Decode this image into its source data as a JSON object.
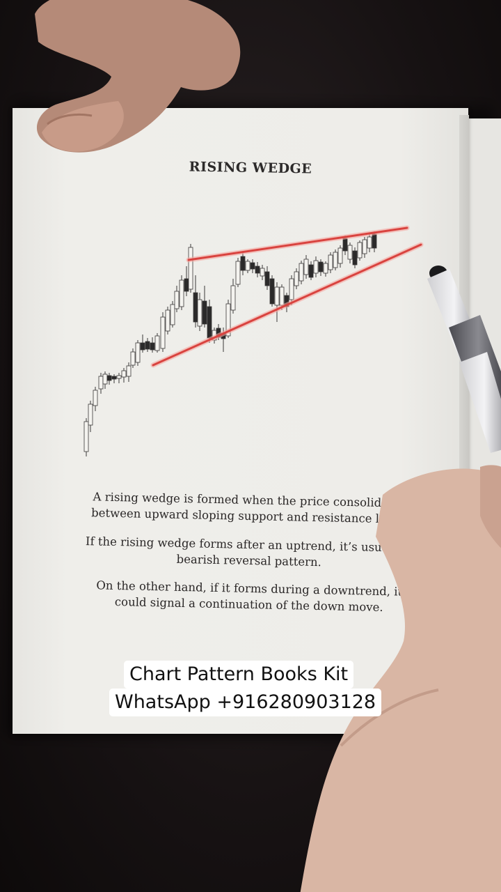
{
  "book": {
    "title": "RISING WEDGE",
    "paragraphs": [
      "A rising wedge is formed when the price consolidates between upward sloping support and resistance lines.",
      "If the rising wedge forms after an uptrend, it’s usually a bearish reversal pattern.",
      "On the other hand, if it forms during a downtrend, it could signal a continuation of the down move."
    ]
  },
  "caption": {
    "line1": "Chart Pattern Books Kit",
    "line2": "WhatsApp +916280903128"
  },
  "colors": {
    "trendline": "#d9433f",
    "trendline_glow": "#f2a09a",
    "candle_up": "#f4f3ef",
    "candle_down": "#2b2a2a",
    "page": "#ecebe7",
    "caption_bg": "#ffffff"
  },
  "icons": {
    "pen": "pen-icon",
    "hands": "hand-icon"
  }
}
